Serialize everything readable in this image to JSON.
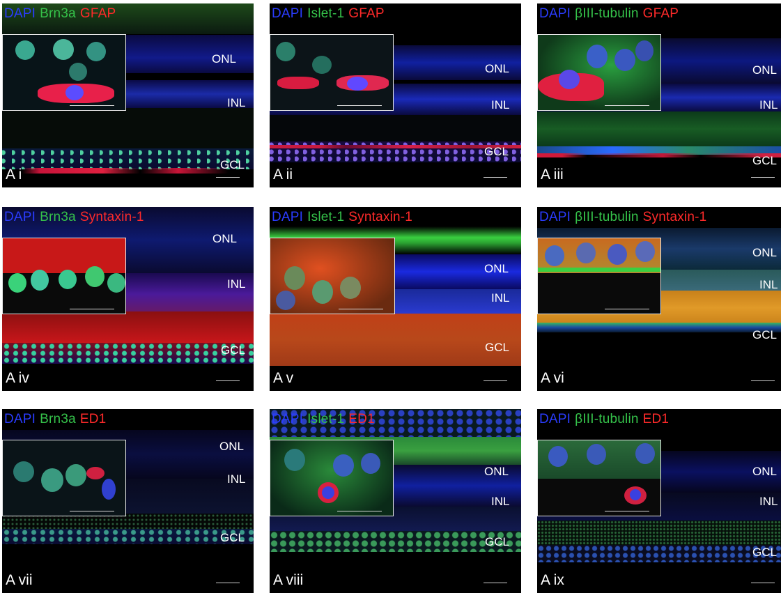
{
  "colors": {
    "dapi": "#2a3cff",
    "green": "#35c24a",
    "red": "#ff2a2a"
  },
  "layer_labels": {
    "onl": "ONL",
    "inl": "INL",
    "gcl": "GCL"
  },
  "panels": [
    {
      "id": "A i",
      "stain_dapi": "DAPI",
      "stain_green": "Brn3a",
      "stain_red": "GFAP"
    },
    {
      "id": "A ii",
      "stain_dapi": "DAPI",
      "stain_green": "Islet-1",
      "stain_red": "GFAP"
    },
    {
      "id": "A iii",
      "stain_dapi": "DAPI",
      "stain_green": "βIII-tubulin",
      "stain_red": "GFAP"
    },
    {
      "id": "A iv",
      "stain_dapi": "DAPI",
      "stain_green": "Brn3a",
      "stain_red": "Syntaxin-1"
    },
    {
      "id": "A v",
      "stain_dapi": "DAPI",
      "stain_green": "Islet-1",
      "stain_red": "Syntaxin-1"
    },
    {
      "id": "A vi",
      "stain_dapi": "DAPI",
      "stain_green": "βIII-tubulin",
      "stain_red": "Syntaxin-1"
    },
    {
      "id": "A vii",
      "stain_dapi": "DAPI",
      "stain_green": "Brn3a",
      "stain_red": "ED1"
    },
    {
      "id": "A viii",
      "stain_dapi": "DAPI",
      "stain_green": "Islet-1",
      "stain_red": "ED1"
    },
    {
      "id": "A ix",
      "stain_dapi": "DAPI",
      "stain_green": "βIII-tubulin",
      "stain_red": "ED1"
    }
  ]
}
